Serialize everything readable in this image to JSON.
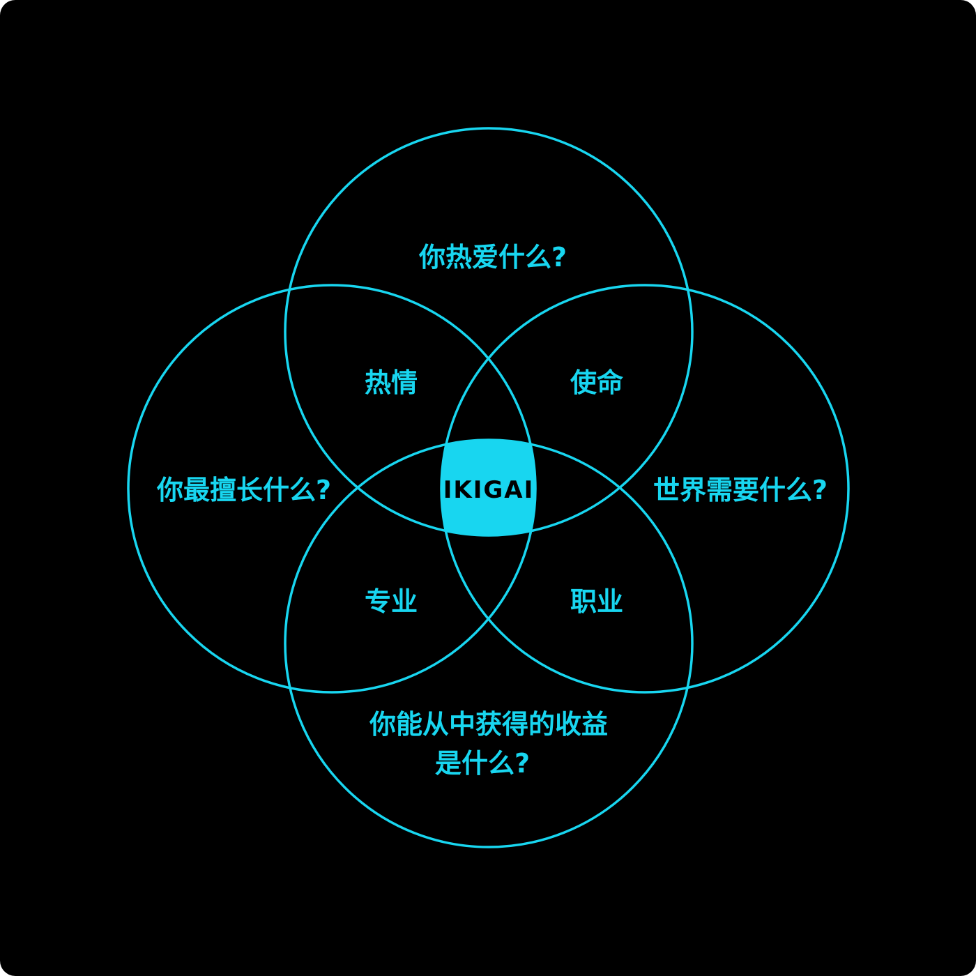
{
  "colors": {
    "background": "#000000",
    "accent": "#18d6f0",
    "center_text": "#000000"
  },
  "circles": {
    "top": {
      "question": "你热爱什么?"
    },
    "left": {
      "question": "你最擅长什么?"
    },
    "right": {
      "question": "世界需要什么?"
    },
    "bottom": {
      "question_line1": "你能从中获得的收益",
      "question_line2": "是什么?"
    }
  },
  "overlaps": {
    "top_left": "热情",
    "top_right": "使命",
    "bottom_left": "专业",
    "bottom_right": "职业"
  },
  "center": {
    "label": "IKIGAI"
  }
}
